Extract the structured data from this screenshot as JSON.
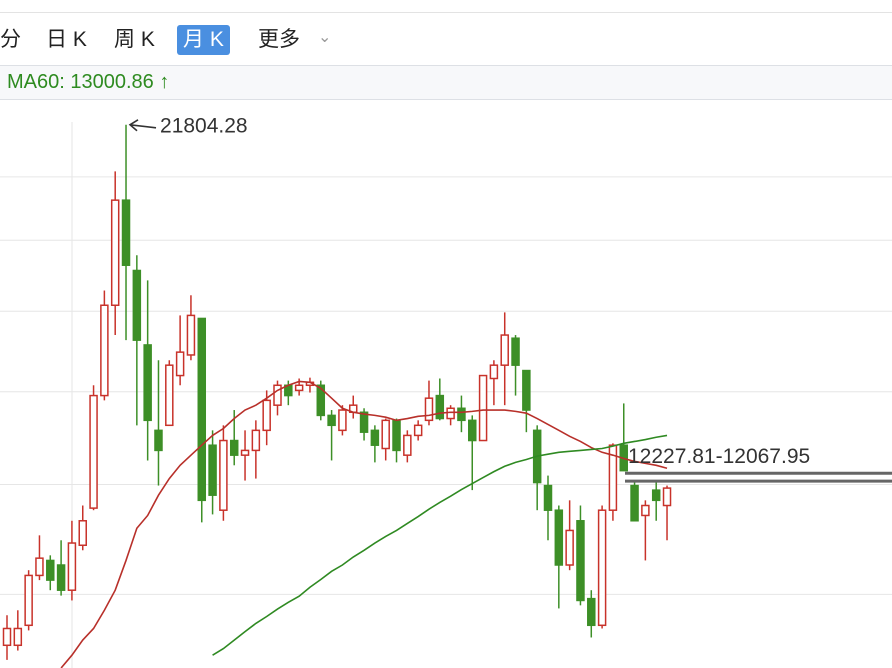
{
  "toolbar": {
    "tabs": [
      "分",
      "日 K",
      "周 K",
      "月 K",
      "更多"
    ],
    "selected": 3
  },
  "indicator_text": "MA60: 13000.86 ↑",
  "chart_data": {
    "type": "candlestick",
    "log_scale": true,
    "ylim": [
      8850,
      23100
    ],
    "gridlines": [
      10000,
      12000,
      14000,
      16000,
      18000,
      20000
    ],
    "up_color": "#c8322a",
    "down_color": "#3d8f27",
    "open": [
      9190,
      9190,
      9500,
      10320,
      10580,
      10500,
      10070,
      10850,
      11540,
      13910,
      16160,
      19240,
      17120,
      15130,
      13130,
      13240,
      14380,
      14880,
      15810,
      12810,
      11500,
      12910,
      12600,
      12700,
      13130,
      13690,
      14150,
      14030,
      14150,
      14150,
      13460,
      13130,
      13530,
      13530,
      13130,
      12740,
      13350,
      12600,
      13020,
      13350,
      13910,
      13390,
      13620,
      13350,
      12910,
      14310,
      14630,
      15300,
      14500,
      13130,
      11980,
      11500,
      10500,
      11300,
      9930,
      9500,
      11500,
      12810,
      11980,
      11400,
      11890,
      11590
    ],
    "close": [
      9450,
      9450,
      10320,
      10620,
      10240,
      10070,
      10890,
      11300,
      13910,
      16160,
      19240,
      17270,
      15250,
      13350,
      12700,
      14630,
      14950,
      15890,
      11690,
      11790,
      12910,
      12600,
      12700,
      13130,
      13800,
      14150,
      13910,
      14150,
      14220,
      13460,
      13240,
      13580,
      13690,
      13090,
      12810,
      13350,
      12700,
      13020,
      13240,
      13850,
      13390,
      13620,
      13350,
      12910,
      14380,
      14630,
      15380,
      14630,
      13580,
      12040,
      11500,
      10500,
      11120,
      9900,
      9500,
      11500,
      12810,
      12280,
      11300,
      11590,
      11690,
      11930
    ],
    "high": [
      9660,
      9740,
      10410,
      11030,
      10670,
      10940,
      11300,
      11590,
      14150,
      16560,
      20180,
      21804.28,
      17560,
      16840,
      14750,
      14750,
      15890,
      16430,
      15810,
      13130,
      13240,
      13580,
      13130,
      13350,
      14030,
      14260,
      14260,
      14310,
      14330,
      14260,
      13580,
      13690,
      13910,
      13620,
      13240,
      13390,
      13390,
      13130,
      13350,
      14260,
      14310,
      13690,
      13910,
      13460,
      14380,
      14750,
      15970,
      15380,
      14500,
      13240,
      12180,
      11590,
      11690,
      11590,
      10070,
      11590,
      12850,
      13730,
      12080,
      11690,
      12080,
      11980
    ],
    "low": [
      8970,
      9110,
      9420,
      10240,
      10070,
      9980,
      9900,
      10760,
      11500,
      13800,
      15380,
      15250,
      13240,
      12490,
      11980,
      13240,
      14150,
      14750,
      11270,
      11420,
      11300,
      12390,
      12080,
      12120,
      12810,
      13460,
      13690,
      13910,
      13980,
      13350,
      12490,
      13020,
      13390,
      12910,
      12450,
      12490,
      12450,
      12450,
      12910,
      13240,
      13350,
      13240,
      13090,
      11890,
      12910,
      13690,
      13690,
      13910,
      13090,
      11500,
      10940,
      9770,
      10410,
      9820,
      9310,
      9450,
      11300,
      12280,
      11300,
      10580,
      11300,
      10940
    ],
    "ma_lines": [
      {
        "color": "#b8302a",
        "values": [
          null,
          null,
          null,
          null,
          null,
          8850,
          9040,
          9270,
          9450,
          9740,
          10070,
          10580,
          11160,
          11400,
          11790,
          12120,
          12390,
          12600,
          12810,
          13020,
          13170,
          13390,
          13580,
          13690,
          13850,
          14030,
          14150,
          14240,
          14220,
          14080,
          13850,
          13620,
          13530,
          13490,
          13460,
          13420,
          13350,
          13390,
          13440,
          13460,
          13510,
          13530,
          13530,
          13550,
          13580,
          13580,
          13580,
          13550,
          13510,
          13390,
          13260,
          13130,
          13000,
          12890,
          12760,
          12660,
          12600,
          12530,
          12470,
          12430,
          12390,
          12330
        ]
      },
      {
        "color": "#2f8a22",
        "values": [
          null,
          null,
          null,
          null,
          null,
          null,
          null,
          null,
          null,
          null,
          null,
          null,
          null,
          null,
          null,
          null,
          null,
          null,
          null,
          9040,
          9140,
          9270,
          9400,
          9530,
          9640,
          9760,
          9870,
          9970,
          10120,
          10250,
          10390,
          10500,
          10640,
          10760,
          10890,
          11010,
          11120,
          11250,
          11380,
          11520,
          11650,
          11770,
          11900,
          12020,
          12140,
          12260,
          12370,
          12450,
          12510,
          12580,
          12620,
          12660,
          12680,
          12700,
          12720,
          12740,
          12790,
          12850,
          12890,
          12930,
          12980,
          13020
        ]
      }
    ],
    "range": {
      "values": [
        12227.81,
        12067.95
      ],
      "label": "12227.81-12067.95"
    }
  }
}
